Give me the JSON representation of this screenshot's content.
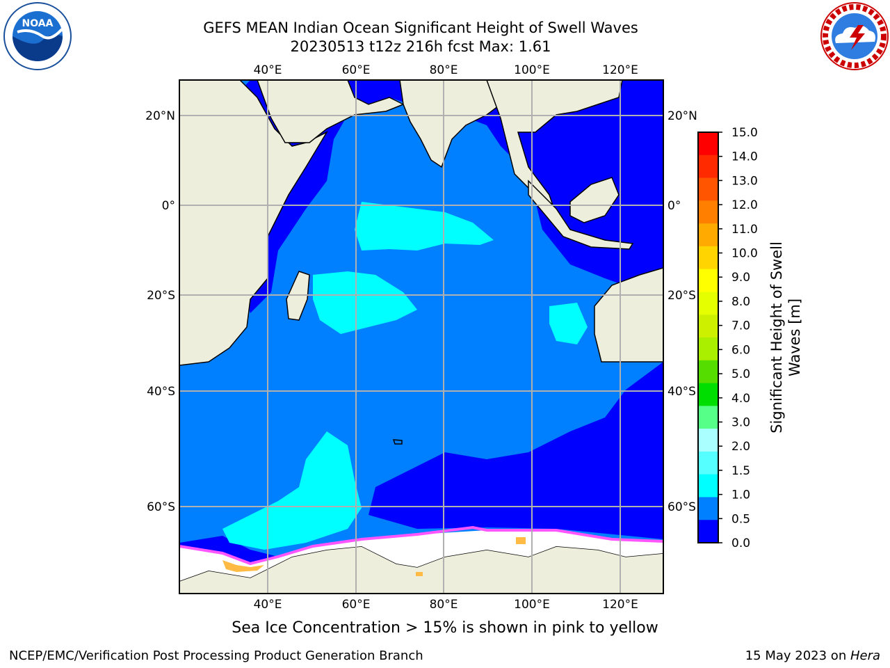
{
  "header": {
    "title_line1": "GEFS MEAN Indian Ocean Significant Height of Swell Waves",
    "title_line2": "20230513 t12z 216h fcst   Max: 1.61"
  },
  "logos": {
    "left": "noaa-logo",
    "left_text": "NOAA",
    "right": "nws-logo"
  },
  "map": {
    "lon_ticks": [
      "40°E",
      "60°E",
      "80°E",
      "100°E",
      "120°E"
    ],
    "lat_ticks_left": [
      "20°N",
      "0°",
      "20°S",
      "40°S",
      "60°S"
    ],
    "lat_ticks_right": [
      "20°N",
      "0°",
      "20°S",
      "40°S",
      "60°S"
    ],
    "colors": {
      "ocean_low": "#0000ff",
      "ocean_mid": "#0080ff",
      "ocean_high": "#00ffff",
      "land": "#eeeedd",
      "sea_ice": "#ffffff",
      "ice_edge": "#ff55ff",
      "ice_inner": "#ffbb44",
      "grid": "#b0b0b0"
    }
  },
  "colorbar": {
    "ticks": [
      "15.0",
      "14.0",
      "13.0",
      "12.0",
      "11.0",
      "10.0",
      "9.0",
      "8.0",
      "7.0",
      "6.0",
      "5.0",
      "4.0",
      "3.0",
      "2.0",
      "1.5",
      "1.0",
      "0.5",
      "0.0"
    ],
    "colors": [
      "#ff0000",
      "#ff2a00",
      "#ff5500",
      "#ff8000",
      "#ffaa00",
      "#ffd400",
      "#ffff00",
      "#e6ff00",
      "#ccf000",
      "#aaee00",
      "#55dd00",
      "#00dd00",
      "#55ff88",
      "#aaffff",
      "#55ffff",
      "#00ffff",
      "#0080ff",
      "#0000ff"
    ],
    "label_line1": "Significant Height of Swell",
    "label_line2": "Waves [m]"
  },
  "caption": "Sea Ice Concentration > 15% is shown in pink to yellow",
  "footer": {
    "left": "NCEP/EMC/Verification Post Processing Product Generation Branch",
    "right_prefix": "15 May 2023 on ",
    "right_machine": "Hera"
  }
}
